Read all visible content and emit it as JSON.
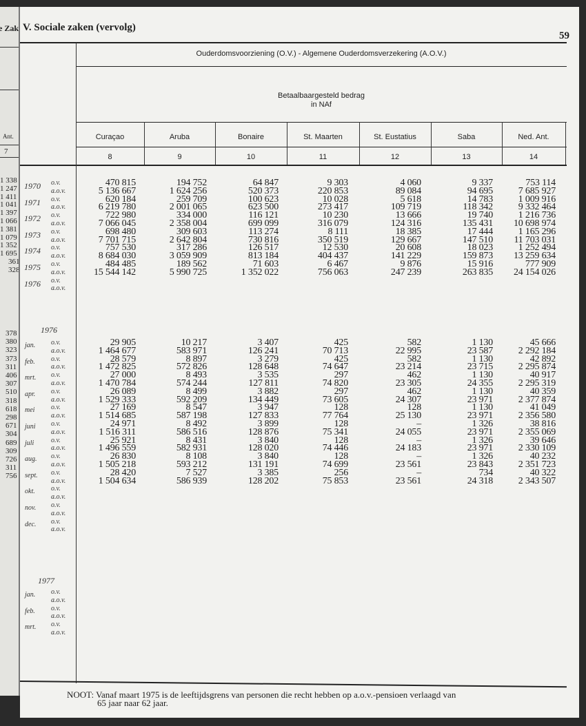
{
  "adjacent_page": {
    "header_fragment": "e Zaken",
    "column_fragment": "Ant.",
    "number_fragment": "7",
    "yearly_fragment": [
      "1 338",
      "1 247",
      "1 411",
      "1 041",
      "1 397",
      "1 066",
      "1 381",
      "1 079",
      "1 352",
      "1 695",
      "361",
      "328"
    ],
    "monthly_fragment": [
      "378",
      "380",
      "323",
      "373",
      "311",
      "406",
      "307",
      "510",
      "318",
      "618",
      "298",
      "671",
      "304",
      "689",
      "309",
      "726",
      "311",
      "756"
    ]
  },
  "header": {
    "section_title": "V. Sociale zaken (vervolg)",
    "page_number": "59",
    "title": "Ouderdomsvoorziening (O.V.)  -  Algemene Ouderdomsverzekering (A.O.V.)",
    "subtitle_line1": "Betaalbaargesteld bedrag",
    "subtitle_line2": "in NAf",
    "columns": [
      {
        "name": "Curaçao",
        "number": "8"
      },
      {
        "name": "Aruba",
        "number": "9"
      },
      {
        "name": "Bonaire",
        "number": "10"
      },
      {
        "name": "St. Maarten",
        "number": "11"
      },
      {
        "name": "St. Eustatius",
        "number": "12"
      },
      {
        "name": "Saba",
        "number": "13"
      },
      {
        "name": "Ned. Ant.",
        "number": "14"
      }
    ]
  },
  "row_labels": {
    "ov": "o.v.",
    "aov": "a.o.v."
  },
  "yearly": [
    {
      "year": "1970",
      "ov": [
        "470 815",
        "194 752",
        "64 847",
        "9 303",
        "4 060",
        "9 337",
        "753 114"
      ],
      "aov": [
        "5 136 667",
        "1 624 256",
        "520 373",
        "220 853",
        "89 084",
        "94 695",
        "7 685 927"
      ]
    },
    {
      "year": "1971",
      "ov": [
        "620 184",
        "259 709",
        "100 623",
        "10 028",
        "5 618",
        "14 783",
        "1 009 916"
      ],
      "aov": [
        "6 219 780",
        "2 001 065",
        "623 500",
        "273 417",
        "109 719",
        "118 342",
        "9 332 464"
      ]
    },
    {
      "year": "1972",
      "ov": [
        "722 980",
        "334 000",
        "116 121",
        "10 230",
        "13 666",
        "19 740",
        "1 216 736"
      ],
      "aov": [
        "7 066 045",
        "2 358 004",
        "699 099",
        "316 079",
        "124 316",
        "135 431",
        "10 698 974"
      ]
    },
    {
      "year": "1973",
      "ov": [
        "698 480",
        "309 603",
        "113 274",
        "8 111",
        "18 385",
        "17 444",
        "1 165 296"
      ],
      "aov": [
        "7 701 715",
        "2 642 804",
        "730 816",
        "350 519",
        "129 667",
        "147 510",
        "11 703 031"
      ]
    },
    {
      "year": "1974",
      "ov": [
        "757 530",
        "317 286",
        "126 517",
        "12 530",
        "20 608",
        "18 023",
        "1 252 494"
      ],
      "aov": [
        "8 684 030",
        "3 059 909",
        "813 184",
        "404 437",
        "141 229",
        "159 873",
        "13 259 634"
      ]
    },
    {
      "year": "1975",
      "ov": [
        "484 485",
        "189 562",
        "71 603",
        "6 467",
        "9 876",
        "15 916",
        "777 909"
      ],
      "aov": [
        "15 544 142",
        "5 990 725",
        "1 352 022",
        "756 063",
        "247 239",
        "263 835",
        "24 154 026"
      ]
    },
    {
      "year": "1976",
      "ov": [],
      "aov": []
    }
  ],
  "monthly_1976": {
    "year": "1976",
    "months": [
      {
        "month": "jan.",
        "ov": [
          "29 905",
          "10 217",
          "3 407",
          "425",
          "582",
          "1 130",
          "45 666"
        ],
        "aov": [
          "1 464 677",
          "583 971",
          "126 241",
          "70 713",
          "22 995",
          "23 587",
          "2 292 184"
        ]
      },
      {
        "month": "feb.",
        "ov": [
          "28 579",
          "8 897",
          "3 279",
          "425",
          "582",
          "1 130",
          "42 892"
        ],
        "aov": [
          "1 472 825",
          "572 826",
          "128 648",
          "74 647",
          "23 214",
          "23 715",
          "2 295 874"
        ]
      },
      {
        "month": "mrt.",
        "ov": [
          "27 000",
          "8 493",
          "3 535",
          "297",
          "462",
          "1 130",
          "40 917"
        ],
        "aov": [
          "1 470 784",
          "574 244",
          "127 811",
          "74 820",
          "23 305",
          "24 355",
          "2 295 319"
        ]
      },
      {
        "month": "apr.",
        "ov": [
          "26 089",
          "8 499",
          "3 882",
          "297",
          "462",
          "1 130",
          "40 359"
        ],
        "aov": [
          "1 529 333",
          "592 209",
          "134 449",
          "73 605",
          "24 307",
          "23 971",
          "2 377 874"
        ]
      },
      {
        "month": "mei",
        "ov": [
          "27 169",
          "8 547",
          "3 947",
          "128",
          "128",
          "1 130",
          "41 049"
        ],
        "aov": [
          "1 514 685",
          "587 198",
          "127 833",
          "77 764",
          "25 130",
          "23 971",
          "2 356 580"
        ]
      },
      {
        "month": "juni",
        "ov": [
          "24 971",
          "8 492",
          "3 899",
          "128",
          "–",
          "1 326",
          "38 816"
        ],
        "aov": [
          "1 516 311",
          "586 516",
          "128 876",
          "75 341",
          "24 055",
          "23 971",
          "2 355 069"
        ]
      },
      {
        "month": "juli",
        "ov": [
          "25 921",
          "8 431",
          "3 840",
          "128",
          "–",
          "1 326",
          "39 646"
        ],
        "aov": [
          "1 496 559",
          "582 931",
          "128 020",
          "74 446",
          "24 183",
          "23 971",
          "2 330 109"
        ]
      },
      {
        "month": "aug.",
        "ov": [
          "26 830",
          "8 108",
          "3 840",
          "128",
          "–",
          "1 326",
          "40 232"
        ],
        "aov": [
          "1 505 218",
          "593 212",
          "131 191",
          "74 699",
          "23 561",
          "23 843",
          "2 351 723"
        ]
      },
      {
        "month": "sept.",
        "ov": [
          "28 420",
          "7 527",
          "3 385",
          "256",
          "–",
          "734",
          "40 322"
        ],
        "aov": [
          "1 504 634",
          "586 939",
          "128 202",
          "75 853",
          "23 561",
          "24 318",
          "2 343 507"
        ]
      },
      {
        "month": "okt.",
        "ov": [],
        "aov": []
      },
      {
        "month": "nov.",
        "ov": [],
        "aov": []
      },
      {
        "month": "dec.",
        "ov": [],
        "aov": []
      }
    ]
  },
  "monthly_1977": {
    "year": "1977",
    "months": [
      {
        "month": "jan.",
        "ov": [],
        "aov": []
      },
      {
        "month": "feb.",
        "ov": [],
        "aov": []
      },
      {
        "month": "mrt.",
        "ov": [],
        "aov": []
      }
    ]
  },
  "footnote": {
    "label": "NOOT:",
    "line1": "Vanaf maart 1975 is de leeftijdsgrens van personen die recht hebben op a.o.v.-pensioen verlaagd van",
    "line2": "65 jaar naar 62 jaar."
  }
}
